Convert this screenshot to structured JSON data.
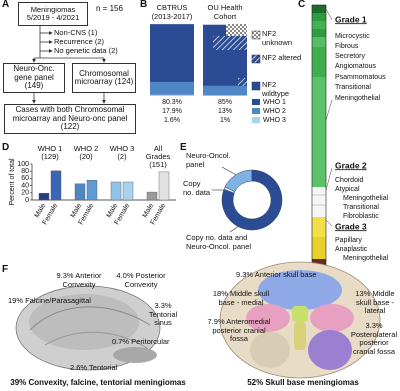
{
  "panel_a": {
    "letter": "A",
    "title": "Meningiomas 5/2019 - 4/2021",
    "count": "n = 156",
    "excluded": [
      "Non-CNS (1)",
      "Recurrence (2)",
      "No genetic data (2)"
    ],
    "gene_panel": "Neuro-Onc. gene panel (149)",
    "microarray": "Chromosomal microarray (124)",
    "both": "Cases with both Chromosomal microarray and Neuro-onc panel (122)"
  },
  "chart_data": [
    {
      "type": "stacked_bar",
      "letter": "B",
      "categories": [
        "CBTRUS (2013-2017)",
        "OU Health Cohort"
      ],
      "ylim": [
        0,
        100
      ],
      "series": [
        {
          "name": "WHO 1",
          "color": "#2b4c95",
          "values": [
            80.3,
            85
          ],
          "value_labels": [
            "80.3%",
            "85%"
          ]
        },
        {
          "name": "WHO 2",
          "color": "#4f86c6",
          "values": [
            17.9,
            13
          ],
          "value_labels": [
            "17.9%",
            "13%"
          ]
        },
        {
          "name": "WHO 3",
          "color": "#a9d2ee",
          "values": [
            1.6,
            1
          ],
          "value_labels": [
            "1.6%",
            "1%"
          ]
        }
      ],
      "nf2_legend": [
        "NF2 unknown",
        "NF2 altered",
        "NF2 wildtype"
      ]
    },
    {
      "type": "grouped_bar",
      "letter": "D",
      "ylabel": "Percent of total",
      "categories": [
        "WHO 1 (129)",
        "WHO 2 (20)",
        "WHO 3 (2)",
        "All Grades (151)"
      ],
      "ylim": [
        0,
        100
      ],
      "yticks": [
        0,
        20,
        40,
        60,
        80,
        100
      ],
      "series": [
        {
          "name": "Male",
          "colors": [
            "#223f86",
            "#4f86c6",
            "#8fc3e8",
            "#9a9a9a"
          ],
          "values": [
            19,
            45,
            50,
            22
          ]
        },
        {
          "name": "Female",
          "colors": [
            "#3a66b8",
            "#5d9ad6",
            "#a9d2ee",
            "#e2e2e2"
          ],
          "values": [
            81,
            55,
            50,
            78
          ]
        }
      ]
    },
    {
      "type": "donut",
      "letter": "E",
      "categories": [
        "Neuro-Oncol. panel",
        "Copy no. data",
        "Copy no. data and Neuro-Oncol. panel"
      ],
      "values": [
        27,
        2,
        122
      ],
      "colors": [
        "#7fb2e3",
        "#e8f2fb",
        "#2b4c95"
      ]
    }
  ],
  "panel_c": {
    "letter": "C",
    "groups": [
      {
        "title": "Grade 1",
        "subtypes": [
          "Microcystic",
          "Fibrous",
          "Secretory",
          "Angiomatous",
          "Psammomatous",
          "Transitional",
          "Meningothelial"
        ]
      },
      {
        "title": "Grade 2",
        "subtypes": [
          "Chordoid",
          "Atypical",
          "Meningothelial",
          "Transitional",
          "Fibroblastic"
        ]
      },
      {
        "title": "Grade 3",
        "subtypes": [
          "Papillary",
          "Anaplastic",
          "Meningothelial"
        ]
      }
    ]
  },
  "panel_f": {
    "letter": "F",
    "convexity": {
      "labels": [
        "9.3% Anterior Convexity",
        "4.0% Posterior Convexity",
        "19% Falcine/Parasagittal",
        "3.3% Tentorial sinus",
        "0.7% Peritorcular",
        "2.6% Tentorial"
      ],
      "caption": "39% Convexity, falcine, tentorial meningiomas"
    },
    "skull_base": {
      "labels": [
        "9.3% Anterior skull base",
        "13% Middle skull base - lateral",
        "18% Middle skull base - medial",
        "7.9% Anteromedial posterior cranial fossa",
        "3.3% Posterolateral posterior cranial fossa"
      ],
      "caption": "52% Skull base meningiomas"
    }
  }
}
